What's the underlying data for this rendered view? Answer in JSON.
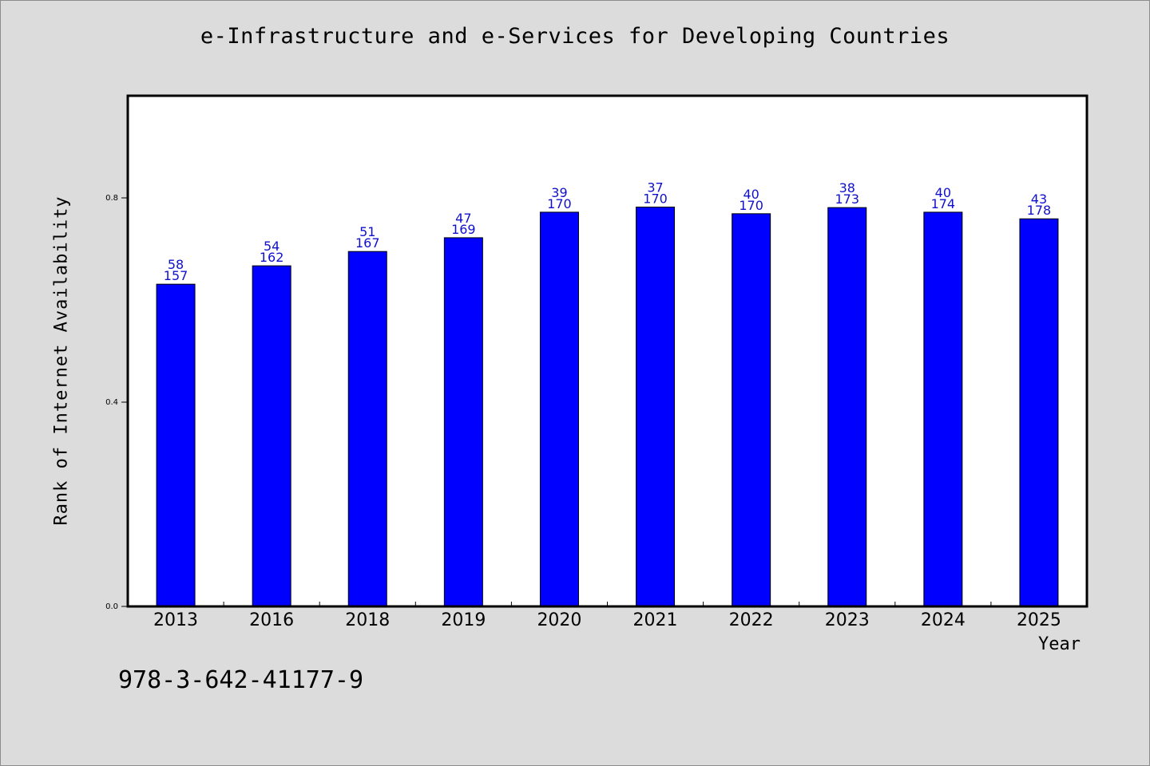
{
  "title": "e-Infrastructure and e-Services for Developing Countries",
  "footer_text": "978-3-642-41177-9",
  "chart_data": {
    "type": "bar",
    "title": "e-Infrastructure and e-Services for Developing Countries",
    "xlabel": "Year",
    "ylabel": "Rank of Internet Availability",
    "ylim": [
      0,
      1.0
    ],
    "yticks": [
      0.0,
      0.4,
      0.8
    ],
    "ytick_labels": [
      "0.0",
      "0.4",
      "0.8"
    ],
    "grid": false,
    "bar_color": "#0000ff",
    "label_color": "#1010cc",
    "categories": [
      "2013",
      "2016",
      "2018",
      "2019",
      "2020",
      "2021",
      "2022",
      "2023",
      "2024",
      "2025"
    ],
    "values": [
      0.631,
      0.667,
      0.695,
      0.722,
      0.772,
      0.782,
      0.769,
      0.781,
      0.772,
      0.759
    ],
    "labels_top": [
      "58",
      "54",
      "51",
      "47",
      "39",
      "37",
      "40",
      "38",
      "40",
      "43"
    ],
    "labels_bottom": [
      "157",
      "162",
      "167",
      "169",
      "170",
      "170",
      "170",
      "173",
      "174",
      "178"
    ]
  }
}
